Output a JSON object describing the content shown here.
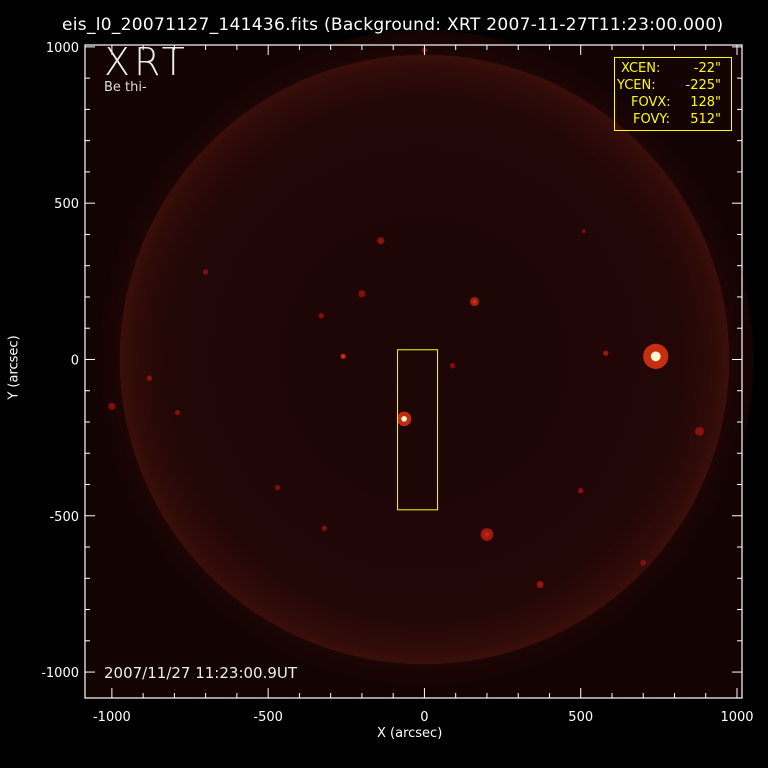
{
  "title": "eis_l0_20071127_141436.fits  (Background: XRT 2007-11-27T11:23:00.000)",
  "logo": "XRT",
  "logo_sub": "Be thi-",
  "timestamp": "2007/11/27 11:23:00.9UT",
  "info_box": [
    {
      "label": "XCEN:",
      "value": "-22\""
    },
    {
      "label": "YCEN:",
      "value": "-225\""
    },
    {
      "label": "FOVX:",
      "value": "128\""
    },
    {
      "label": "FOVY:",
      "value": "512\""
    }
  ],
  "colors": {
    "axes": "#ffffff",
    "box": "#ffff00",
    "sun": "#2a0a08",
    "bright": "#ff3010"
  },
  "chart_data": {
    "type": "image",
    "xlabel": "X (arcsec)",
    "ylabel": "Y (arcsec)",
    "xlim": [
      -1086,
      1016
    ],
    "ylim": [
      -1083,
      1006
    ],
    "xticks": [
      -1000,
      -500,
      0,
      500,
      1000
    ],
    "yticks": [
      -1000,
      -500,
      0,
      500,
      1000
    ],
    "xtick_labels": [
      "-1000",
      "-500",
      "0",
      "500",
      "1000"
    ],
    "ytick_labels": [
      "-1000",
      "-500",
      "0",
      "500",
      "1000"
    ],
    "solar_radius_arcsec": 975,
    "fov_box": {
      "xcen": -22,
      "ycen": -225,
      "fovx": 128,
      "fovy": 512
    },
    "features": [
      {
        "x": 740,
        "y": 10,
        "intensity": 1.0,
        "size": 14
      },
      {
        "x": -65,
        "y": -190,
        "intensity": 0.95,
        "size": 8
      },
      {
        "x": 160,
        "y": 185,
        "intensity": 0.7,
        "size": 5
      },
      {
        "x": -260,
        "y": 10,
        "intensity": 0.8,
        "size": 3
      },
      {
        "x": 200,
        "y": -560,
        "intensity": 0.6,
        "size": 7
      },
      {
        "x": 580,
        "y": 20,
        "intensity": 0.5,
        "size": 3
      },
      {
        "x": 370,
        "y": -720,
        "intensity": 0.4,
        "size": 4
      },
      {
        "x": -140,
        "y": 380,
        "intensity": 0.35,
        "size": 4
      },
      {
        "x": -200,
        "y": 210,
        "intensity": 0.3,
        "size": 4
      },
      {
        "x": 500,
        "y": -420,
        "intensity": 0.35,
        "size": 3
      },
      {
        "x": -880,
        "y": -60,
        "intensity": 0.35,
        "size": 3
      },
      {
        "x": -790,
        "y": -170,
        "intensity": 0.3,
        "size": 3
      },
      {
        "x": -1000,
        "y": -150,
        "intensity": 0.3,
        "size": 4
      },
      {
        "x": 0,
        "y": 990,
        "intensity": 0.4,
        "size": 3
      },
      {
        "x": 510,
        "y": 410,
        "intensity": 0.3,
        "size": 2
      },
      {
        "x": -320,
        "y": -540,
        "intensity": 0.3,
        "size": 3
      },
      {
        "x": -330,
        "y": 140,
        "intensity": 0.3,
        "size": 3
      },
      {
        "x": 90,
        "y": -20,
        "intensity": 0.25,
        "size": 3
      },
      {
        "x": -700,
        "y": 280,
        "intensity": 0.25,
        "size": 3
      },
      {
        "x": 880,
        "y": -230,
        "intensity": 0.3,
        "size": 5
      },
      {
        "x": -470,
        "y": -410,
        "intensity": 0.25,
        "size": 3
      },
      {
        "x": 700,
        "y": -650,
        "intensity": 0.25,
        "size": 3
      }
    ]
  }
}
